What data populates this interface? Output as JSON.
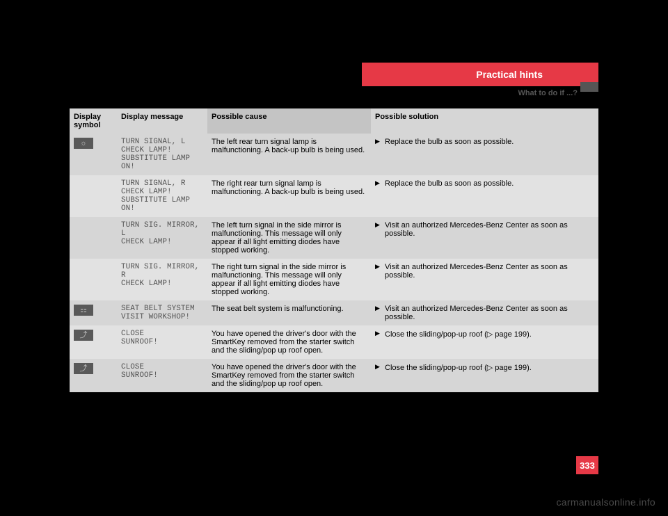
{
  "header": {
    "title": "Practical hints",
    "subtitle": "What to do if ...?",
    "page_number": "333"
  },
  "watermark": "carmanualsonline.info",
  "table": {
    "headers": {
      "symbol": "Display symbol",
      "message": "Display message",
      "cause": "Possible cause",
      "solution": "Possible solution"
    },
    "rows": [
      {
        "icon": "☼",
        "msg_lines": [
          "TURN SIGNAL, L",
          "CHECK LAMP!",
          "SUBSTITUTE LAMP ON!"
        ],
        "cause": "The left rear turn signal lamp is malfunctioning. A back-up bulb is being used.",
        "solution": "Replace the bulb as soon as possible.",
        "shade": "dark",
        "show_icon": true
      },
      {
        "icon": "",
        "msg_lines": [
          "TURN SIGNAL, R",
          "CHECK LAMP!",
          "SUBSTITUTE LAMP ON!"
        ],
        "cause": "The right rear turn signal lamp is malfunctioning. A back-up bulb is being used.",
        "solution": "Replace the bulb as soon as possible.",
        "shade": "light",
        "show_icon": false
      },
      {
        "icon": "",
        "msg_lines": [
          "TURN SIG. MIRROR, L",
          "CHECK LAMP!"
        ],
        "cause": "The left turn signal in the side mirror is malfunctioning. This message will only appear if all light emitting diodes have stopped working.",
        "solution": "Visit an authorized Mercedes-Benz Center as soon as possible.",
        "shade": "dark",
        "show_icon": false
      },
      {
        "icon": "",
        "msg_lines": [
          "TURN SIG. MIRROR, R",
          "CHECK LAMP!"
        ],
        "cause": "The right turn signal in the side mirror is malfunctioning. This message will only appear if all light emitting diodes have stopped working.",
        "solution": "Visit an authorized Mercedes-Benz Center as soon as possible.",
        "shade": "light",
        "show_icon": false
      },
      {
        "icon": "⚏",
        "msg_lines": [
          "SEAT BELT SYSTEM",
          "VISIT WORKSHOP!"
        ],
        "cause": "The seat belt system is malfunctioning.",
        "solution": "Visit an authorized Mercedes-Benz Center as soon as possible.",
        "shade": "dark",
        "show_icon": true
      },
      {
        "icon": "⤴",
        "msg_lines": [
          "CLOSE",
          "SUNROOF!"
        ],
        "cause": "You have opened the driver's door with the SmartKey removed from the starter switch and the sliding/pop up roof open.",
        "solution": "Close the sliding/pop-up roof (▷ page 199).",
        "shade": "light",
        "show_icon": true
      },
      {
        "icon": "⤴",
        "msg_lines": [
          "CLOSE",
          "SUNROOF!"
        ],
        "cause": "You have opened the driver's door with the SmartKey removed from the starter switch and the sliding/pop up roof open.",
        "solution": "Close the sliding/pop-up roof (▷ page 199).",
        "shade": "dark",
        "show_icon": true
      }
    ]
  },
  "style": {
    "header_bg": "#e63946",
    "page_bg": "#000000",
    "row_dark_bg": "#d6d6d6",
    "row_light_bg": "#e2e2e2",
    "header_row_bg": "#d1d1d1"
  }
}
